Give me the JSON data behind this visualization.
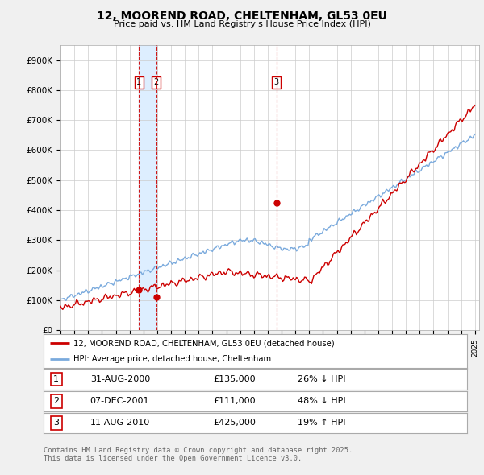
{
  "title": "12, MOOREND ROAD, CHELTENHAM, GL53 0EU",
  "subtitle": "Price paid vs. HM Land Registry's House Price Index (HPI)",
  "background_color": "#f0f0f0",
  "plot_bg_color": "#ffffff",
  "ylim": [
    0,
    950000
  ],
  "yticks": [
    0,
    100000,
    200000,
    300000,
    400000,
    500000,
    600000,
    700000,
    800000,
    900000
  ],
  "ytick_labels": [
    "£0",
    "£100K",
    "£200K",
    "£300K",
    "£400K",
    "£500K",
    "£600K",
    "£700K",
    "£800K",
    "£900K"
  ],
  "year_start": 1995,
  "year_end": 2025,
  "transactions": [
    {
      "label": "1",
      "date": "31-AUG-2000",
      "year": 2000.67,
      "price": 135000,
      "pct": "26%",
      "dir": "↓"
    },
    {
      "label": "2",
      "date": "07-DEC-2001",
      "year": 2001.92,
      "price": 111000,
      "pct": "48%",
      "dir": "↓"
    },
    {
      "label": "3",
      "date": "11-AUG-2010",
      "year": 2010.62,
      "price": 425000,
      "pct": "19%",
      "dir": "↑"
    }
  ],
  "legend_label_red": "12, MOOREND ROAD, CHELTENHAM, GL53 0EU (detached house)",
  "legend_label_blue": "HPI: Average price, detached house, Cheltenham",
  "footer": "Contains HM Land Registry data © Crown copyright and database right 2025.\nThis data is licensed under the Open Government Licence v3.0.",
  "red_color": "#cc0000",
  "blue_color": "#7aaadd",
  "vline_color": "#cc0000",
  "shade_color": "#ddeeff"
}
